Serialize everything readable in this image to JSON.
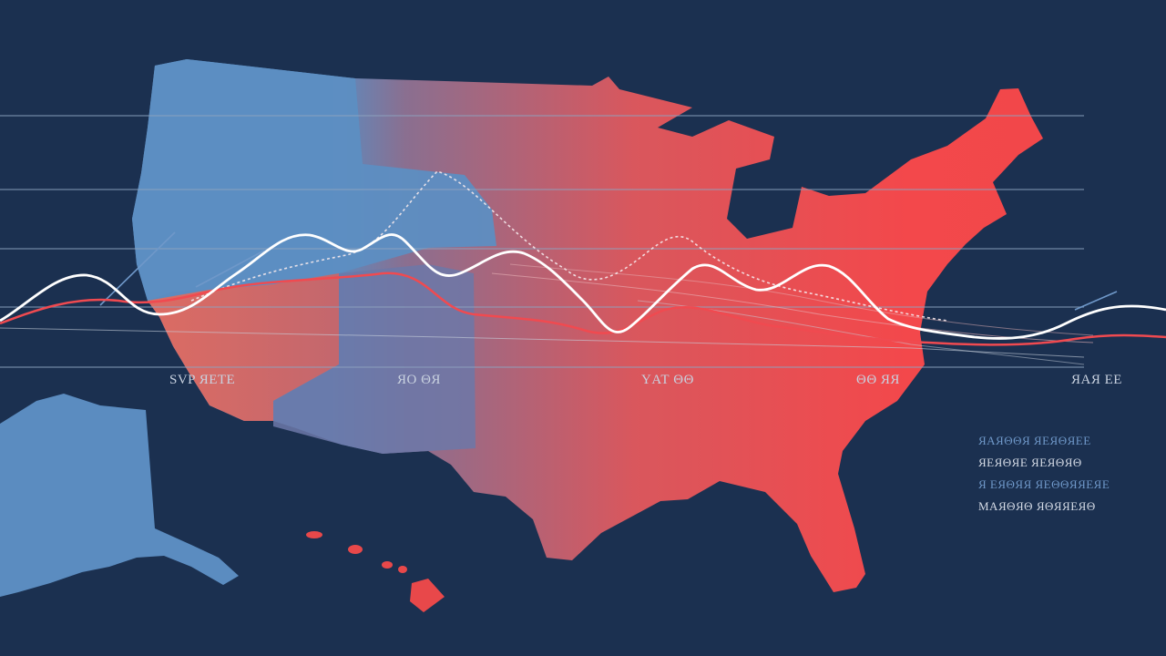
{
  "colors": {
    "background": "#1b3050",
    "region_blue": "#5b8cc0",
    "region_red": "#f2474a",
    "line_white": "#ffffff",
    "line_red": "#f04a50",
    "gridline": "#8ea3bf"
  },
  "axis_labels": [
    "SVP ЯЕТЕ",
    "ЯО ΘЯ",
    "ΥАТ ΘΘ",
    "ΘΘ ЯЯ",
    "ЯАЯ ЕЕ"
  ],
  "legend": [
    {
      "text": "ЯАЯΘΘЯ ЯЕЯΘЯЕЕ",
      "color": "#6f98c9"
    },
    {
      "text": "ЯЕЯΘЯЕ ЯЕЯΘЯΘ",
      "color": "#d5dbe6"
    },
    {
      "text": "Я ЕЯΘЯЯ ЯЕΘΘЯЯЕЯЕ",
      "color": "#6f98c9"
    },
    {
      "text": "МАЯΘЯΘ ЯΘЯЯЕЯΘ",
      "color": "#d5dbe6"
    }
  ]
}
